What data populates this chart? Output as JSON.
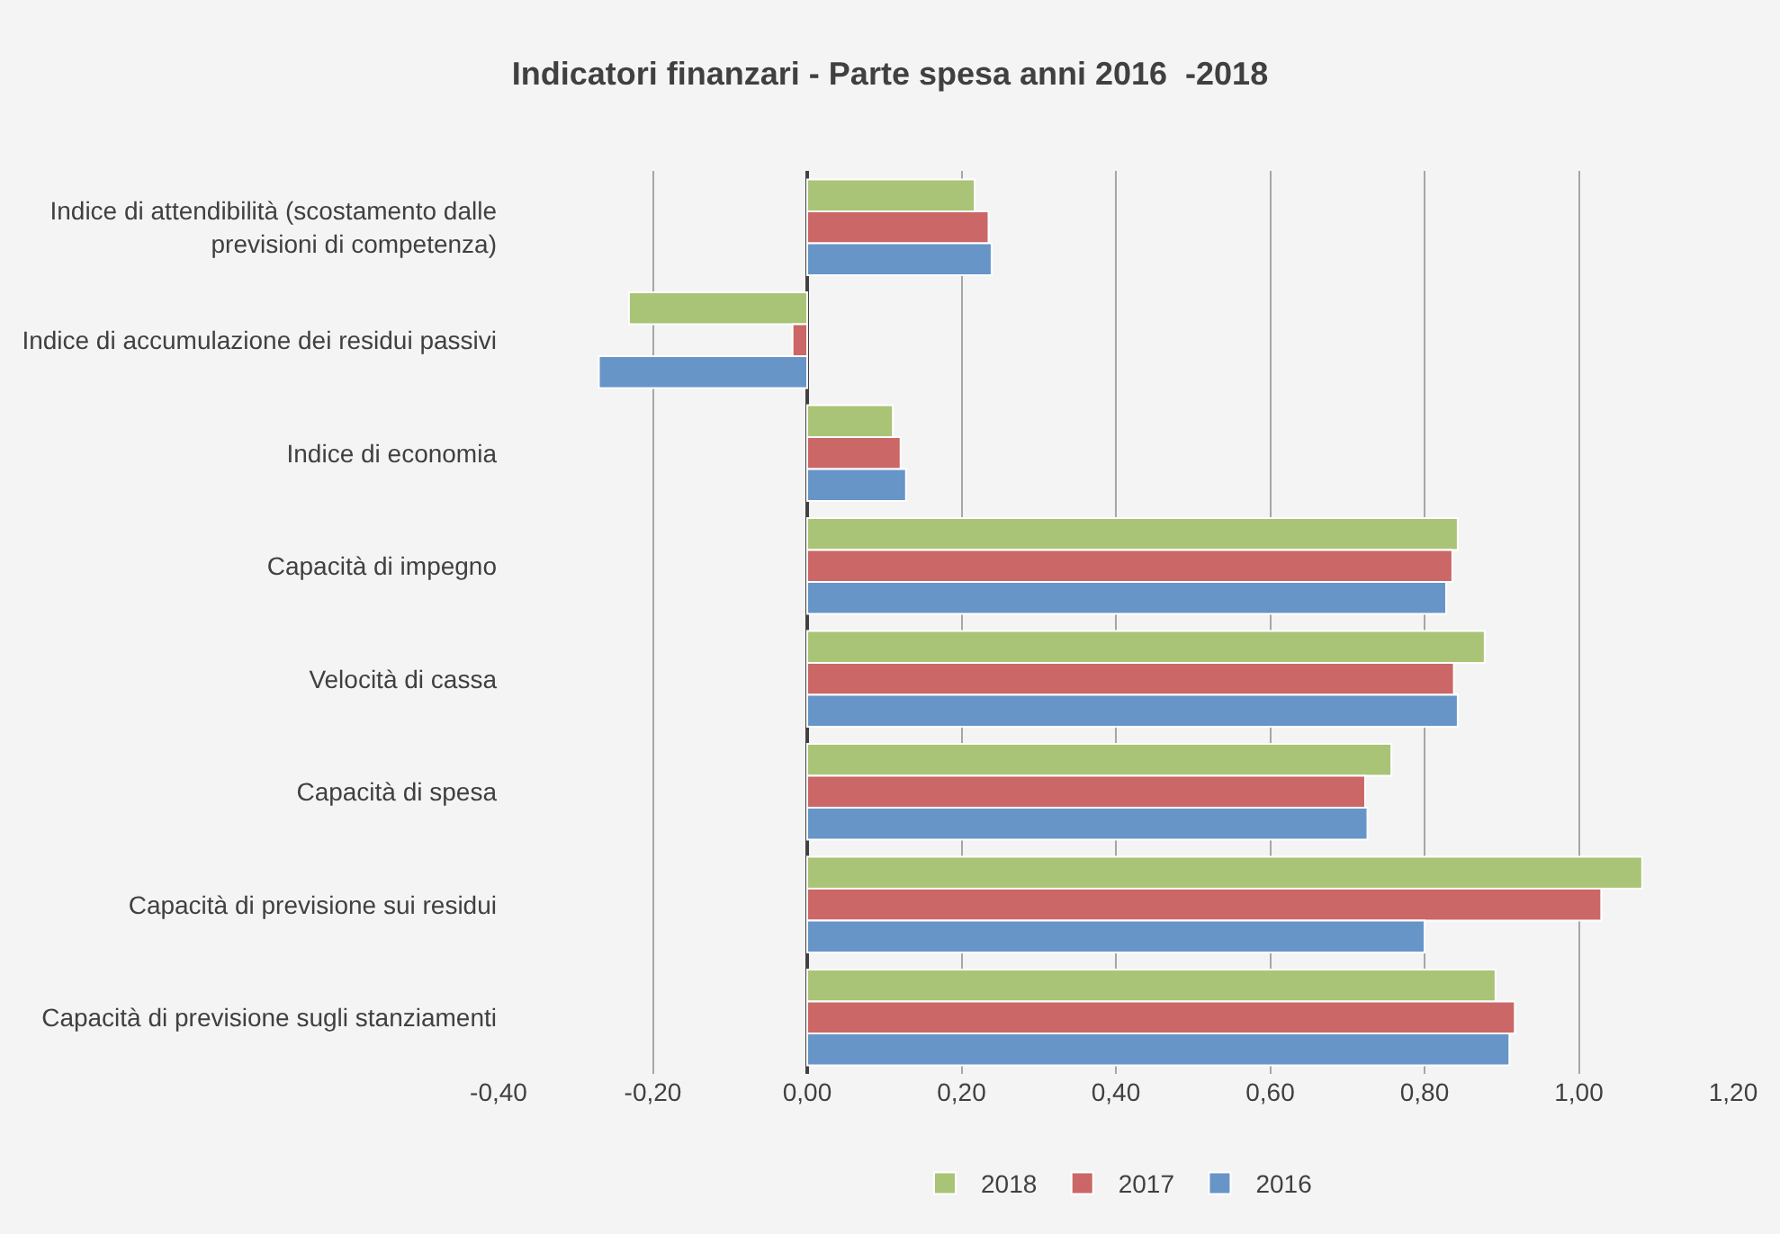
{
  "chart_data": {
    "type": "bar",
    "orientation": "horizontal",
    "title": "Indicatori finanzari - Parte spesa anni 2016  -2018",
    "categories": [
      "Indice di attendibilità (scostamento dalle previsioni di competenza)",
      "Indice di accumulazione dei residui passivi",
      "Indice di economia",
      "Capacità di impegno",
      "Velocità di cassa",
      "Capacità di spesa",
      "Capacità di previsione sui residui",
      "Capacità di previsione sugli stanziamenti"
    ],
    "series": [
      {
        "name": "2018",
        "color": "#a9c476",
        "values": [
          0.217,
          -0.231,
          0.111,
          0.843,
          0.878,
          0.757,
          1.082,
          0.892
        ]
      },
      {
        "name": "2017",
        "color": "#cb6766",
        "values": [
          0.235,
          -0.019,
          0.121,
          0.836,
          0.838,
          0.723,
          1.029,
          0.917
        ]
      },
      {
        "name": "2016",
        "color": "#6795c8",
        "values": [
          0.239,
          -0.27,
          0.128,
          0.828,
          0.843,
          0.726,
          0.8,
          0.91
        ]
      }
    ],
    "xlim": [
      -0.4,
      1.2
    ],
    "xticks": [
      {
        "value": -0.4,
        "label": "-0,40"
      },
      {
        "value": -0.2,
        "label": "-0,20"
      },
      {
        "value": 0,
        "label": "0,00"
      },
      {
        "value": 0.2,
        "label": "0,20"
      },
      {
        "value": 0.4,
        "label": "0,40"
      },
      {
        "value": 0.6,
        "label": "0,60"
      },
      {
        "value": 0.8,
        "label": "0,80"
      },
      {
        "value": 1.0,
        "label": "1,00"
      },
      {
        "value": 1.2,
        "label": "1,20"
      }
    ],
    "grid": "x",
    "legend": "bottom"
  }
}
